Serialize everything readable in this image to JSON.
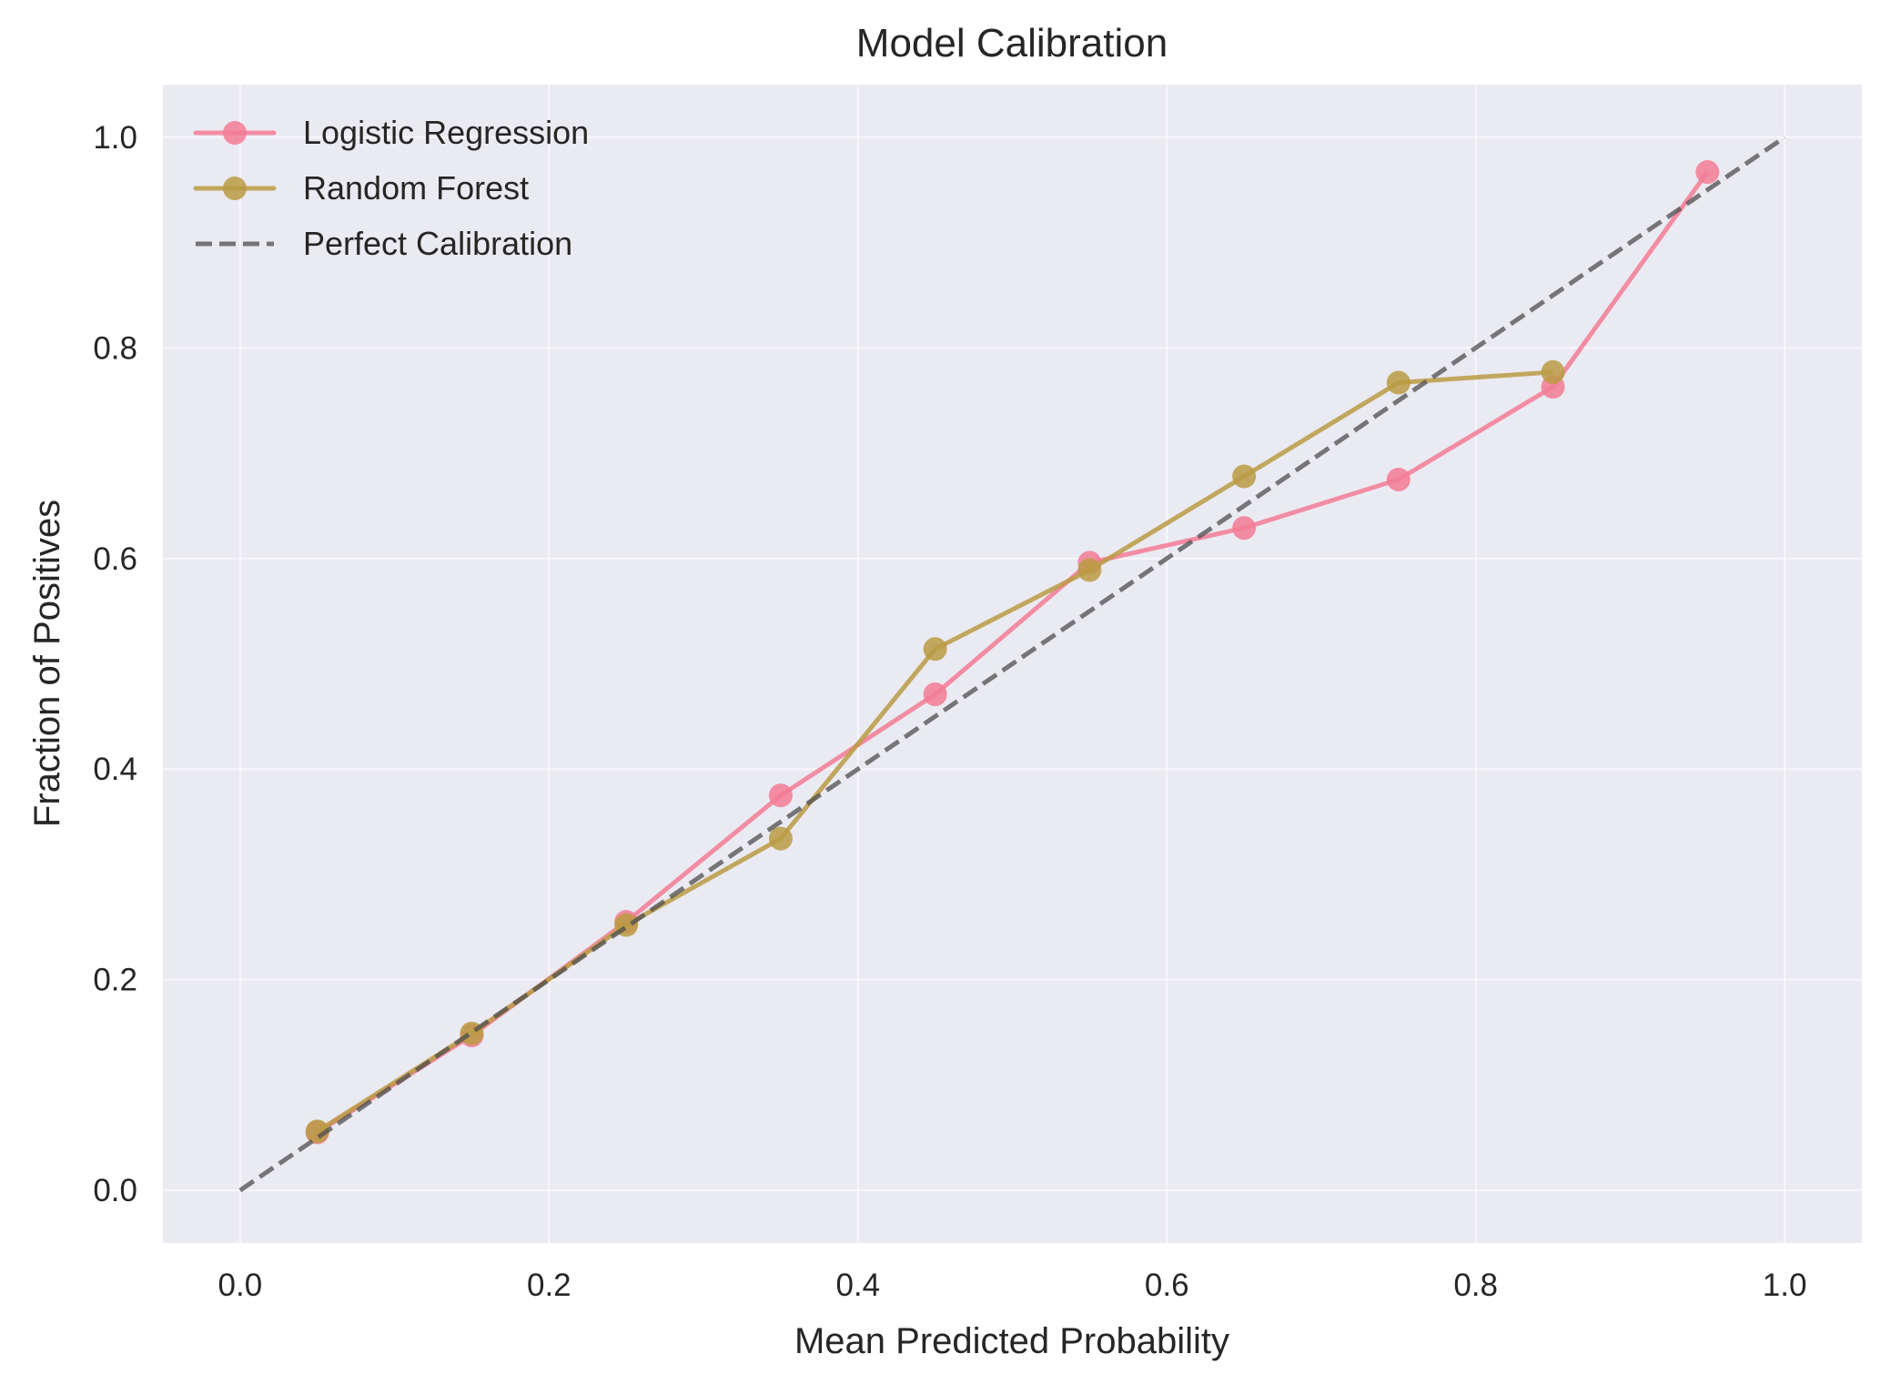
{
  "chart_data": {
    "type": "line",
    "title": "Model Calibration",
    "xlabel": "Mean Predicted Probability",
    "ylabel": "Fraction of Positives",
    "xlim": [
      -0.05,
      1.05
    ],
    "ylim": [
      -0.05,
      1.05
    ],
    "grid": true,
    "legend_position": "top-left",
    "background": "#EAEAF2",
    "x_ticks": [
      "0.0",
      "0.2",
      "0.4",
      "0.6",
      "0.8",
      "1.0"
    ],
    "y_ticks": [
      "0.0",
      "0.2",
      "0.4",
      "0.6",
      "0.8",
      "1.0"
    ],
    "series": [
      {
        "name": "Logistic Regression",
        "color": "#F37B95",
        "marker": "circle",
        "line_style": "solid",
        "x": [
          0.05,
          0.15,
          0.25,
          0.35,
          0.45,
          0.55,
          0.65,
          0.75,
          0.85,
          0.95
        ],
        "y": [
          0.055,
          0.147,
          0.255,
          0.375,
          0.471,
          0.596,
          0.629,
          0.675,
          0.763,
          0.967
        ]
      },
      {
        "name": "Random Forest",
        "color": "#BA9B43",
        "marker": "circle",
        "line_style": "solid",
        "x": [
          0.05,
          0.15,
          0.25,
          0.35,
          0.45,
          0.55,
          0.65,
          0.75,
          0.85
        ],
        "y": [
          0.056,
          0.149,
          0.252,
          0.334,
          0.514,
          0.589,
          0.678,
          0.767,
          0.777
        ]
      },
      {
        "name": "Perfect Calibration",
        "color": "#4D4D4D",
        "marker": "none",
        "line_style": "dashed",
        "x": [
          0,
          1
        ],
        "y": [
          0,
          1
        ]
      }
    ]
  }
}
